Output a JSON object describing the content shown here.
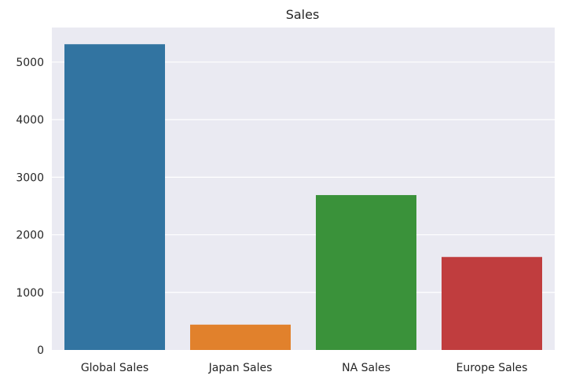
{
  "chart_data": {
    "type": "bar",
    "title": "Sales",
    "xlabel": "",
    "ylabel": "",
    "categories": [
      "Global Sales",
      "Japan Sales",
      "NA Sales",
      "Europe Sales"
    ],
    "values": [
      5310,
      440,
      2690,
      1615
    ],
    "colors": [
      "#3274a1",
      "#e1812c",
      "#3a923a",
      "#c03d3e"
    ],
    "ylim": [
      0,
      5600
    ],
    "yticks": [
      0,
      1000,
      2000,
      3000,
      4000,
      5000
    ],
    "grid": true,
    "background": "#eaeaf2",
    "grid_color": "#ffffff"
  }
}
